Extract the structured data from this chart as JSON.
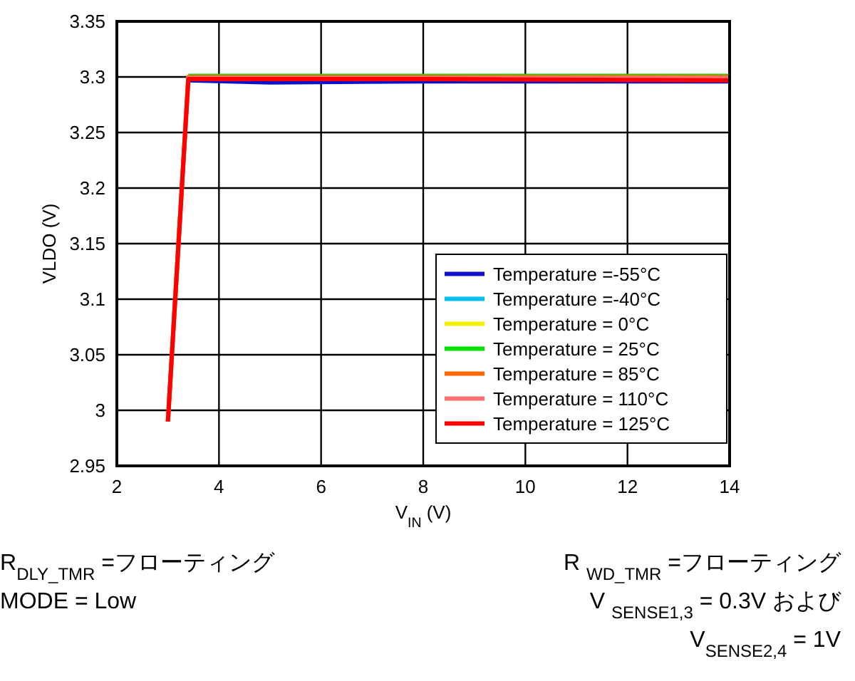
{
  "chart_data": {
    "type": "line",
    "xlabel": "V$_{IN}$ (V)",
    "ylabel": "VLDO (V)",
    "xlim": [
      2,
      14
    ],
    "xticks": [
      2,
      4,
      6,
      8,
      10,
      12,
      14
    ],
    "ylim": [
      2.95,
      3.35
    ],
    "yticks": [
      2.95,
      3,
      3.05,
      3.1,
      3.15,
      3.2,
      3.25,
      3.3,
      3.35
    ],
    "grid": true,
    "legend": "bottom right",
    "marker": "none",
    "line_style": "solid",
    "series": [
      {
        "name": "Temperature =-55°C",
        "color": "#1010c8",
        "x": [
          3.4,
          5,
          8,
          14
        ],
        "values": [
          3.297,
          3.295,
          3.296,
          3.296
        ]
      },
      {
        "name": "Temperature =-40°C",
        "color": "#00c0f0"
      },
      {
        "name": "Temperature = 0°C",
        "color": "#f0f000"
      },
      {
        "name": "Temperature = 25°C",
        "color": "#00e000",
        "x": [
          3.4,
          5,
          8,
          14
        ],
        "values": [
          3.301,
          3.301,
          3.301,
          3.301
        ]
      },
      {
        "name": "Temperature = 85°C",
        "color": "#ff6a00",
        "x": [
          3,
          3.4,
          5,
          8,
          14
        ],
        "values": [
          2.99,
          3.3,
          3.3,
          3.3,
          3.3
        ]
      },
      {
        "name": "Temperature = 110°C",
        "color": "#ff7070",
        "x": [
          3,
          3.4,
          5,
          8,
          14
        ],
        "values": [
          2.99,
          3.299,
          3.299,
          3.299,
          3.299
        ]
      },
      {
        "name": "Temperature = 125°C",
        "color": "#ff0000",
        "x": [
          3,
          3.4,
          5,
          8,
          14
        ],
        "values": [
          2.99,
          3.298,
          3.298,
          3.298,
          3.297
        ]
      }
    ],
    "annotations": [
      "R$_{DLY_TMR}$ =フローティング",
      "MODE = Low",
      "R $_{WD_TMR}$ =フローティング",
      "V $_{SENSE1,3}$ = 0.3V および",
      "V$_{SENSE2,4}$ = 1V"
    ]
  }
}
